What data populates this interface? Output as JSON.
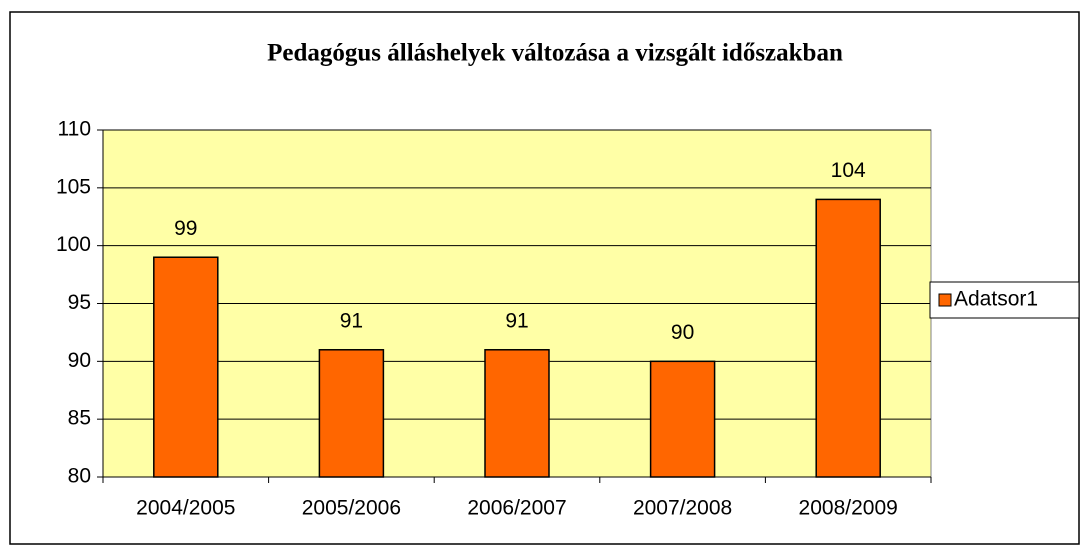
{
  "chart_data": {
    "type": "bar",
    "title": "Pedagógus álláshelyek változása a vizsgált időszakban",
    "categories": [
      "2004/2005",
      "2005/2006",
      "2006/2007",
      "2007/2008",
      "2008/2009"
    ],
    "series": [
      {
        "name": "Adatsor1",
        "color": "#ff6600",
        "values": [
          99,
          91,
          91,
          90,
          104
        ]
      }
    ],
    "ylim": [
      80,
      110
    ],
    "yticks": [
      80,
      85,
      90,
      95,
      100,
      105,
      110
    ],
    "grid": true,
    "legend": "right"
  }
}
